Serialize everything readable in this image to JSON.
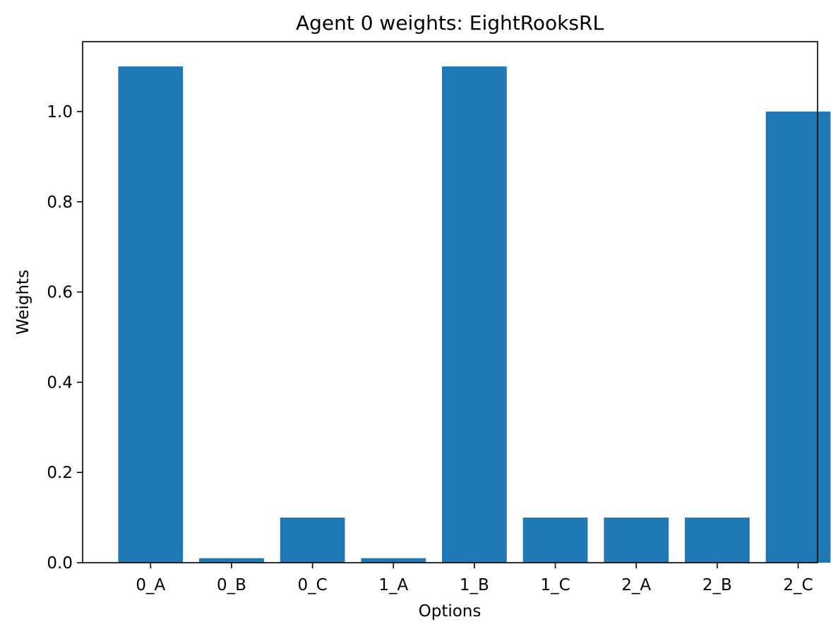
{
  "chart_data": {
    "type": "bar",
    "title": "Agent 0 weights: EightRooksRL",
    "xlabel": "Options",
    "ylabel": "Weights",
    "categories": [
      "0_A",
      "0_B",
      "0_C",
      "1_A",
      "1_B",
      "1_C",
      "2_A",
      "2_B",
      "2_C"
    ],
    "values": [
      1.1,
      0.01,
      0.1,
      0.01,
      1.1,
      0.1,
      0.1,
      0.1,
      1.0
    ],
    "ylim": [
      0,
      1.155
    ],
    "yticks": [
      0.0,
      0.2,
      0.4,
      0.6,
      0.8,
      1.0
    ],
    "ytick_labels": [
      "0.0",
      "0.2",
      "0.4",
      "0.6",
      "0.8",
      "1.0"
    ],
    "bar_color": "#1f77b4",
    "grid": false,
    "legend": "none"
  }
}
